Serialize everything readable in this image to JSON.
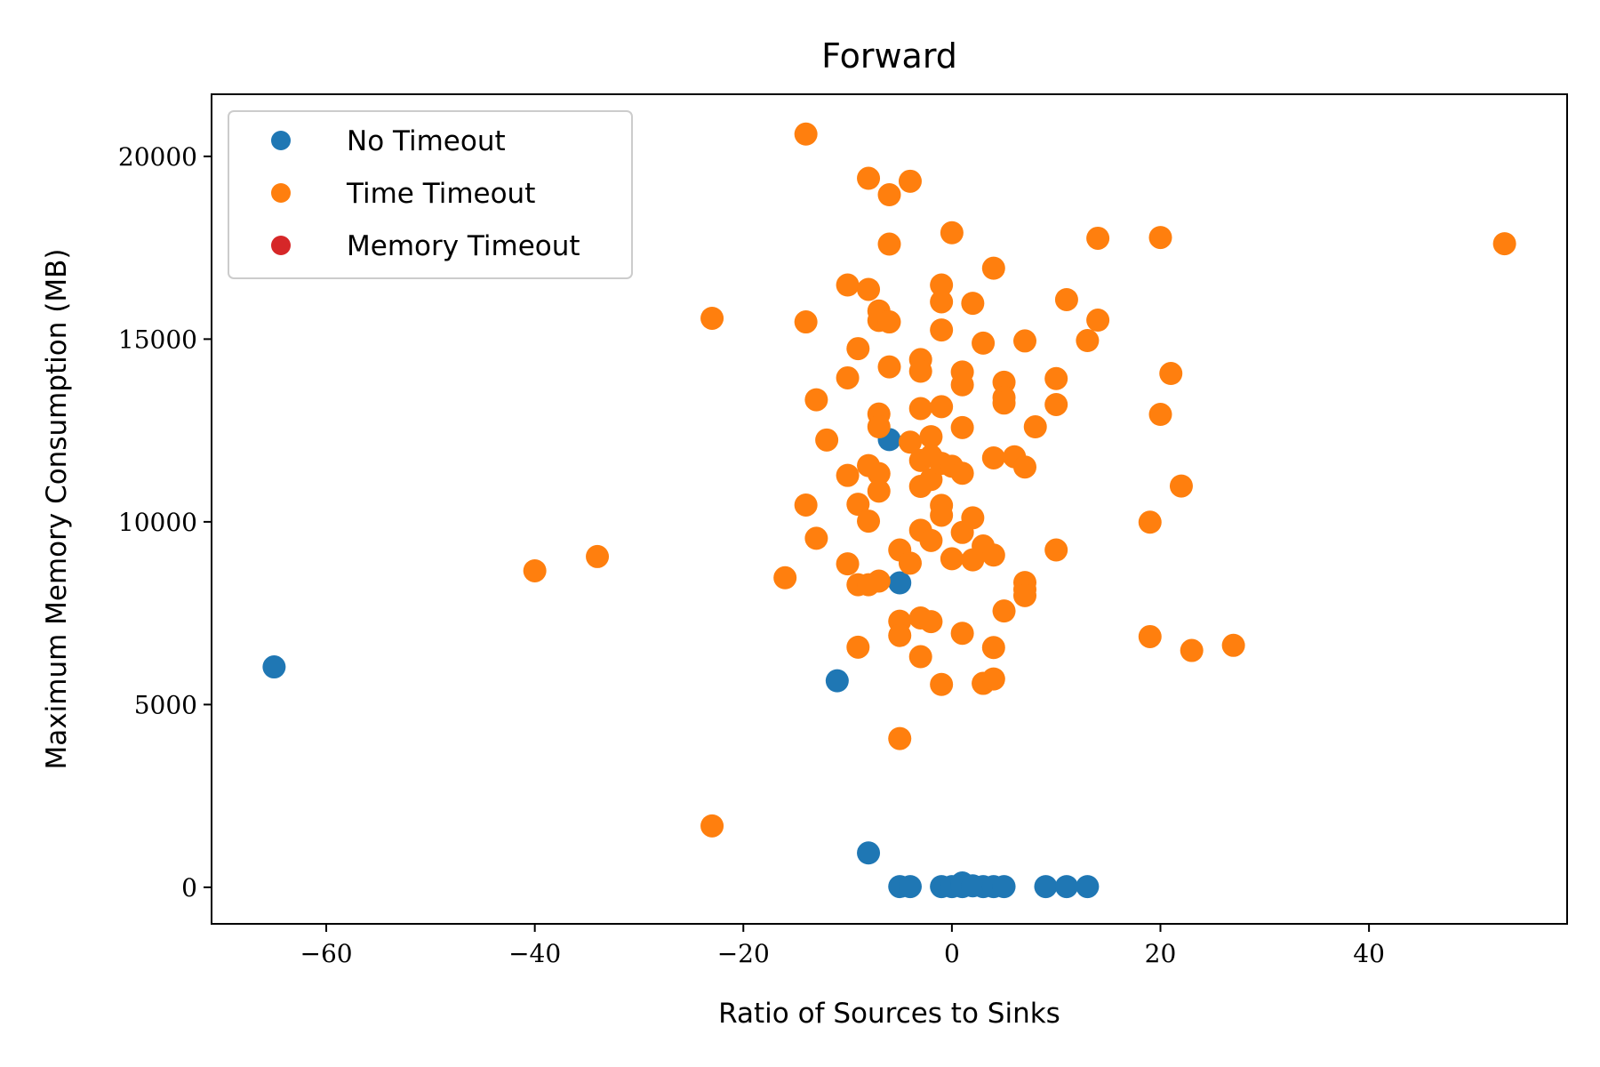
{
  "chart_data": {
    "type": "scatter",
    "title": "Forward",
    "xlabel": "Ratio of Sources to Sinks",
    "ylabel": "Maximum Memory Consumption (MB)",
    "xlim": [
      -71,
      59
    ],
    "ylim": [
      -1000,
      21700
    ],
    "xticks": [
      -60,
      -40,
      -20,
      0,
      20,
      40
    ],
    "xtick_labels": [
      "−60",
      "−40",
      "−20",
      "0",
      "20",
      "40"
    ],
    "yticks": [
      0,
      5000,
      10000,
      15000,
      20000
    ],
    "ytick_labels": [
      "0",
      "5000",
      "10000",
      "15000",
      "20000"
    ],
    "grid": false,
    "legend_position": "top-left",
    "series": [
      {
        "name": "No Timeout",
        "color": "#1f77b4",
        "points": [
          {
            "x": -65,
            "y": 6030
          },
          {
            "x": -11,
            "y": 5650
          },
          {
            "x": -6,
            "y": 12250
          },
          {
            "x": -5,
            "y": 8330
          },
          {
            "x": -8,
            "y": 940
          },
          {
            "x": -5,
            "y": 20
          },
          {
            "x": -4,
            "y": 20
          },
          {
            "x": -1,
            "y": 20
          },
          {
            "x": 0,
            "y": 20
          },
          {
            "x": 1,
            "y": 120
          },
          {
            "x": 1,
            "y": 20
          },
          {
            "x": 2,
            "y": 40
          },
          {
            "x": 3,
            "y": 20
          },
          {
            "x": 4,
            "y": 20
          },
          {
            "x": 5,
            "y": 20
          },
          {
            "x": 9,
            "y": 20
          },
          {
            "x": 11,
            "y": 20
          },
          {
            "x": 13,
            "y": 20
          }
        ]
      },
      {
        "name": "Time Timeout",
        "color": "#ff7f0e",
        "points": [
          {
            "x": -40,
            "y": 8660
          },
          {
            "x": -34,
            "y": 9050
          },
          {
            "x": -23,
            "y": 15570
          },
          {
            "x": -23,
            "y": 1680
          },
          {
            "x": -16,
            "y": 8470
          },
          {
            "x": -14,
            "y": 20610
          },
          {
            "x": -14,
            "y": 15470
          },
          {
            "x": -14,
            "y": 10460
          },
          {
            "x": -13,
            "y": 13340
          },
          {
            "x": -13,
            "y": 9550
          },
          {
            "x": -12,
            "y": 12240
          },
          {
            "x": -10,
            "y": 16480
          },
          {
            "x": -10,
            "y": 13940
          },
          {
            "x": -10,
            "y": 11270
          },
          {
            "x": -10,
            "y": 8850
          },
          {
            "x": -9,
            "y": 14740
          },
          {
            "x": -9,
            "y": 10480
          },
          {
            "x": -9,
            "y": 8280
          },
          {
            "x": -9,
            "y": 6570
          },
          {
            "x": -8,
            "y": 19400
          },
          {
            "x": -8,
            "y": 16360
          },
          {
            "x": -8,
            "y": 11540
          },
          {
            "x": -8,
            "y": 10020
          },
          {
            "x": -8,
            "y": 8280
          },
          {
            "x": -7,
            "y": 15770
          },
          {
            "x": -7,
            "y": 15510
          },
          {
            "x": -7,
            "y": 12950
          },
          {
            "x": -7,
            "y": 12600
          },
          {
            "x": -7,
            "y": 11320
          },
          {
            "x": -7,
            "y": 10840
          },
          {
            "x": -7,
            "y": 8380
          },
          {
            "x": -6,
            "y": 18950
          },
          {
            "x": -6,
            "y": 17600
          },
          {
            "x": -6,
            "y": 15470
          },
          {
            "x": -6,
            "y": 14240
          },
          {
            "x": -5,
            "y": 9230
          },
          {
            "x": -5,
            "y": 7280
          },
          {
            "x": -5,
            "y": 6890
          },
          {
            "x": -5,
            "y": 4070
          },
          {
            "x": -4,
            "y": 19320
          },
          {
            "x": -4,
            "y": 12180
          },
          {
            "x": -4,
            "y": 8870
          },
          {
            "x": -3,
            "y": 14440
          },
          {
            "x": -3,
            "y": 14120
          },
          {
            "x": -3,
            "y": 13100
          },
          {
            "x": -3,
            "y": 11680
          },
          {
            "x": -3,
            "y": 10970
          },
          {
            "x": -3,
            "y": 9770
          },
          {
            "x": -3,
            "y": 7370
          },
          {
            "x": -3,
            "y": 6310
          },
          {
            "x": -2,
            "y": 12330
          },
          {
            "x": -2,
            "y": 11800
          },
          {
            "x": -2,
            "y": 11160
          },
          {
            "x": -2,
            "y": 9490
          },
          {
            "x": -2,
            "y": 7270
          },
          {
            "x": -1,
            "y": 16480
          },
          {
            "x": -1,
            "y": 16020
          },
          {
            "x": -1,
            "y": 15250
          },
          {
            "x": -1,
            "y": 13150
          },
          {
            "x": -1,
            "y": 11600
          },
          {
            "x": -1,
            "y": 10450
          },
          {
            "x": -1,
            "y": 10180
          },
          {
            "x": -1,
            "y": 5550
          },
          {
            "x": 0,
            "y": 17910
          },
          {
            "x": 0,
            "y": 11520
          },
          {
            "x": 0,
            "y": 8990
          },
          {
            "x": 1,
            "y": 14100
          },
          {
            "x": 1,
            "y": 13750
          },
          {
            "x": 1,
            "y": 12580
          },
          {
            "x": 1,
            "y": 11330
          },
          {
            "x": 1,
            "y": 9710
          },
          {
            "x": 1,
            "y": 6950
          },
          {
            "x": 2,
            "y": 15980
          },
          {
            "x": 2,
            "y": 10110
          },
          {
            "x": 2,
            "y": 8960
          },
          {
            "x": 3,
            "y": 14890
          },
          {
            "x": 3,
            "y": 9340
          },
          {
            "x": 3,
            "y": 5580
          },
          {
            "x": 4,
            "y": 16940
          },
          {
            "x": 4,
            "y": 11750
          },
          {
            "x": 4,
            "y": 9090
          },
          {
            "x": 4,
            "y": 6560
          },
          {
            "x": 4,
            "y": 5700
          },
          {
            "x": 5,
            "y": 13820
          },
          {
            "x": 5,
            "y": 13400
          },
          {
            "x": 5,
            "y": 13250
          },
          {
            "x": 5,
            "y": 7560
          },
          {
            "x": 6,
            "y": 11780
          },
          {
            "x": 7,
            "y": 14950
          },
          {
            "x": 7,
            "y": 11500
          },
          {
            "x": 7,
            "y": 8340
          },
          {
            "x": 7,
            "y": 8150
          },
          {
            "x": 7,
            "y": 7980
          },
          {
            "x": 8,
            "y": 12600
          },
          {
            "x": 10,
            "y": 13920
          },
          {
            "x": 10,
            "y": 13210
          },
          {
            "x": 10,
            "y": 9230
          },
          {
            "x": 11,
            "y": 16080
          },
          {
            "x": 13,
            "y": 14960
          },
          {
            "x": 14,
            "y": 17760
          },
          {
            "x": 14,
            "y": 15520
          },
          {
            "x": 19,
            "y": 9990
          },
          {
            "x": 19,
            "y": 6860
          },
          {
            "x": 20,
            "y": 17780
          },
          {
            "x": 20,
            "y": 12940
          },
          {
            "x": 21,
            "y": 14060
          },
          {
            "x": 22,
            "y": 10980
          },
          {
            "x": 23,
            "y": 6480
          },
          {
            "x": 27,
            "y": 6620
          },
          {
            "x": 53,
            "y": 17610
          }
        ]
      },
      {
        "name": "Memory Timeout",
        "color": "#d62728",
        "points": []
      }
    ]
  }
}
